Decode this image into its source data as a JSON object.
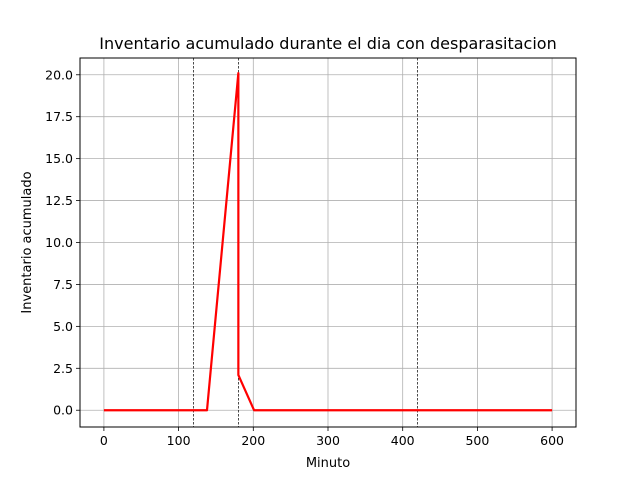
{
  "chart_data": {
    "type": "line",
    "title": "Inventario acumulado durante el dia con desparasitacion",
    "xlabel": "Minuto",
    "ylabel": "Inventario acumulado",
    "xlim": [
      -32,
      632
    ],
    "ylim": [
      -1.0,
      21.0
    ],
    "xticks": [
      0,
      100,
      200,
      300,
      400,
      500,
      600
    ],
    "yticks": [
      0.0,
      2.5,
      5.0,
      7.5,
      10.0,
      12.5,
      15.0,
      17.5,
      20.0
    ],
    "ytick_labels": [
      "0.0",
      "2.5",
      "5.0",
      "7.5",
      "10.0",
      "12.5",
      "15.0",
      "17.5",
      "20.0"
    ],
    "grid": true,
    "vlines": [
      120,
      180,
      420
    ],
    "series": [
      {
        "color": "#ff0000",
        "x": [
          0,
          138,
          180,
          180,
          201,
          600
        ],
        "y": [
          0.0,
          0.0,
          20.1,
          2.1,
          0.0,
          0.0
        ]
      }
    ]
  }
}
